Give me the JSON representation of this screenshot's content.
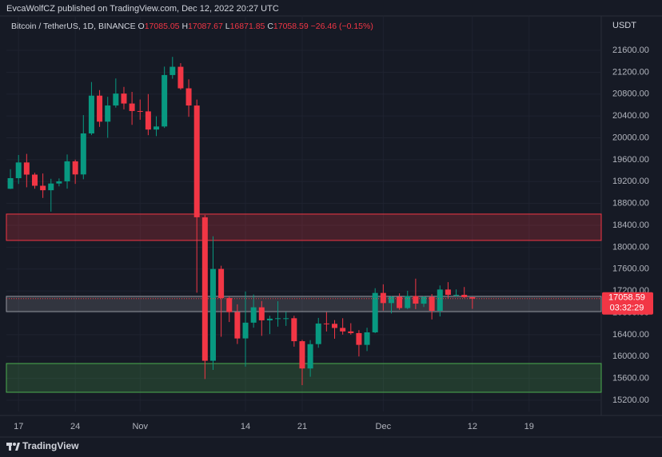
{
  "chart_data": {
    "type": "candlestick",
    "header": "EvcaWolfCZ published on TradingView.com, Dec 12, 2022 20:27 UTC",
    "symbol": "Bitcoin / TetherUS, 1D, BINANCE",
    "ohlc_legend": [
      {
        "label": "O",
        "value": 17085.05
      },
      {
        "label": "H",
        "value": 17087.67
      },
      {
        "label": "L",
        "value": 16871.85
      },
      {
        "label": "C",
        "value": 17058.59
      }
    ],
    "change": "−26.46 (−0.15%)",
    "currency": "USDT",
    "last_price": 17058.59,
    "countdown": "03:32:29",
    "brand": "TradingView",
    "up_color": "#089981",
    "down_color": "#f23645",
    "open": [
      19068,
      19262,
      19549,
      19327,
      19123,
      19041,
      19164,
      19204,
      19570,
      19330,
      20080,
      20771,
      20295,
      20591,
      20809,
      20627,
      20490,
      20483,
      20151,
      20207,
      21148,
      21299,
      20905,
      20590,
      18545,
      15922,
      17602,
      17069,
      16813,
      16331,
      16619,
      16900,
      16661,
      16692,
      16700,
      16700,
      16280,
      15781,
      16227,
      16604,
      16598,
      16523,
      16459,
      16428,
      16213,
      16442,
      17163,
      16977,
      17092,
      16886,
      17106,
      16966,
      17089,
      16836,
      17225,
      17128,
      17128,
      17085.05
    ],
    "high": [
      19425,
      19686,
      19706,
      19360,
      19347,
      19250,
      19257,
      19695,
      19601,
      20415,
      21020,
      20872,
      20750,
      21085,
      20931,
      20840,
      20700,
      20800,
      20393,
      21302,
      21480,
      21365,
      21069,
      20700,
      18587,
      18199,
      17660,
      17099,
      16954,
      17190,
      17134,
      17015,
      16746,
      17011,
      16820,
      16746,
      16305,
      16300,
      16706,
      16812,
      16666,
      16700,
      16609,
      16482,
      16526,
      17249,
      17320,
      17105,
      17155,
      17202,
      17424,
      17107,
      17142,
      17299,
      17360,
      17227,
      17271,
      17087.67
    ],
    "low": [
      19063,
      19156,
      19095,
      19069,
      18900,
      18650,
      19112,
      19070,
      19157,
      19242,
      20050,
      20200,
      20000,
      20552,
      20520,
      20237,
      20330,
      20048,
      20031,
      20180,
      21080,
      20880,
      20384,
      17166,
      15588,
      15754,
      16361,
      16631,
      16229,
      15815,
      16527,
      16378,
      16410,
      16546,
      16560,
      16180,
      15476,
      15630,
      16160,
      16458,
      16325,
      16400,
      16400,
      16001,
      16100,
      16428,
      16840,
      16787,
      16855,
      16867,
      16867,
      16905,
      16678,
      16733,
      17058,
      17092,
      17071,
      16871.85
    ],
    "close": [
      19262,
      19549,
      19327,
      19123,
      19041,
      19164,
      19204,
      19570,
      19330,
      20080,
      20771,
      20295,
      20591,
      20809,
      20627,
      20490,
      20483,
      20151,
      20207,
      21148,
      21299,
      20905,
      20591,
      18547,
      15922,
      17601,
      17070,
      16812,
      16330,
      16619,
      16900,
      16662,
      16692,
      16700,
      16700,
      16280,
      15781,
      16226,
      16603,
      16598,
      16522,
      16459,
      16428,
      16213,
      16442,
      17163,
      16977,
      17092,
      16886,
      17106,
      16967,
      17089,
      16836,
      17225,
      17128,
      17128,
      17085,
      17058.59
    ],
    "zones": [
      {
        "from": 18123,
        "to": 18605,
        "color": "#f23645"
      },
      {
        "from": 16822,
        "to": 17100,
        "color": "#9598a1"
      },
      {
        "from": 15346,
        "to": 15872,
        "color": "#4caf50"
      }
    ],
    "xlim": [
      -0.5,
      72.9
    ],
    "xticks": [
      {
        "value": 1,
        "label": "17"
      },
      {
        "value": 8,
        "label": "24"
      },
      {
        "value": 16,
        "label": "Nov"
      },
      {
        "value": 29,
        "label": "14"
      },
      {
        "value": 36,
        "label": "21"
      },
      {
        "value": 46,
        "label": "Dec"
      },
      {
        "value": 57,
        "label": "12"
      },
      {
        "value": 64,
        "label": "19"
      }
    ],
    "ylim": [
      14995,
      22228
    ],
    "yticks": [
      {
        "value": 15200,
        "label": "15200.00"
      },
      {
        "value": 15600,
        "label": "15600.00"
      },
      {
        "value": 16000,
        "label": "16000.00"
      },
      {
        "value": 16400,
        "label": "16400.00"
      },
      {
        "value": 16800,
        "label": "16800.00"
      },
      {
        "value": 17200,
        "label": "17200.00"
      },
      {
        "value": 17600,
        "label": "17600.00"
      },
      {
        "value": 18000,
        "label": "18000.00"
      },
      {
        "value": 18400,
        "label": "18400.00"
      },
      {
        "value": 18800,
        "label": "18800.00"
      },
      {
        "value": 19200,
        "label": "19200.00"
      },
      {
        "value": 19600,
        "label": "19600.00"
      },
      {
        "value": 20000,
        "label": "20000.00"
      },
      {
        "value": 20400,
        "label": "20400.00"
      },
      {
        "value": 20800,
        "label": "20800.00"
      },
      {
        "value": 21200,
        "label": "21200.00"
      },
      {
        "value": 21600,
        "label": "21600.00"
      }
    ],
    "grid": true
  }
}
